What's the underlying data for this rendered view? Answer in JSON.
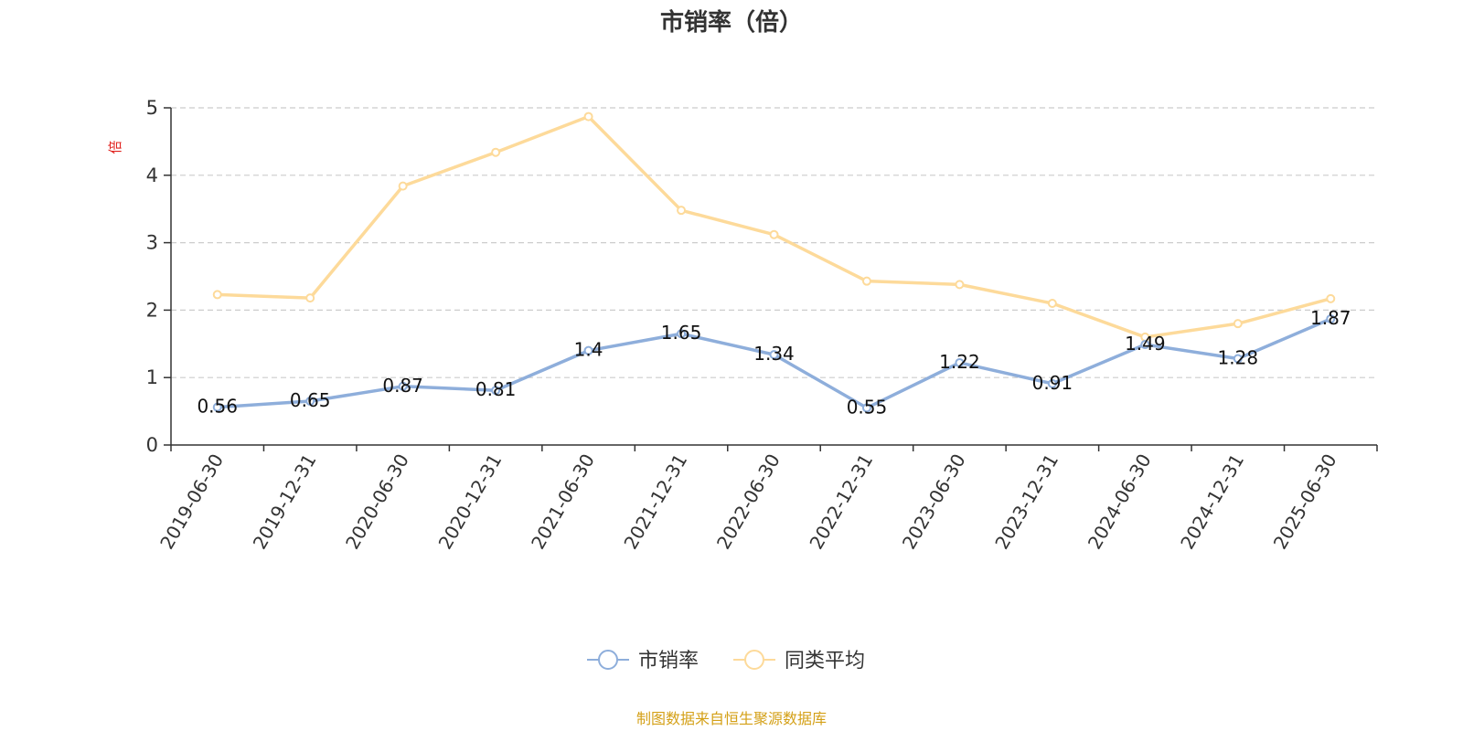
{
  "chart_data": {
    "type": "line",
    "title": "市销率（倍）",
    "ylabel": "倍",
    "ylim": [
      0,
      5
    ],
    "yticks": [
      0,
      1,
      2,
      3,
      4,
      5
    ],
    "grid": true,
    "legend_position": "bottom",
    "categories": [
      "2019-06-30",
      "2019-12-31",
      "2020-06-30",
      "2020-12-31",
      "2021-06-30",
      "2021-12-31",
      "2022-06-30",
      "2022-12-31",
      "2023-06-30",
      "2023-12-31",
      "2024-06-30",
      "2024-12-31",
      "2025-06-30"
    ],
    "series": [
      {
        "name": "市销率",
        "color": "#8eaedb",
        "show_labels": true,
        "labels": [
          "0.56",
          "0.65",
          "0.87",
          "0.81",
          "1.4",
          "1.65",
          "1.34",
          "0.55",
          "1.22",
          "0.91",
          "1.49",
          "1.28",
          "1.87"
        ],
        "values": [
          0.56,
          0.65,
          0.87,
          0.81,
          1.4,
          1.65,
          1.34,
          0.55,
          1.22,
          0.91,
          1.49,
          1.28,
          1.87
        ]
      },
      {
        "name": "同类平均",
        "color": "#fdda9a",
        "show_labels": false,
        "values": [
          2.23,
          2.18,
          3.84,
          4.34,
          4.87,
          3.48,
          3.12,
          2.43,
          2.38,
          2.1,
          1.6,
          1.8,
          2.17
        ]
      }
    ],
    "axis_color": "#333333",
    "grid_color": "#cccccc",
    "ylabel_color": "#e0201c"
  },
  "footer": {
    "source": "制图数据来自恒生聚源数据库",
    "color": "#d4a017"
  }
}
